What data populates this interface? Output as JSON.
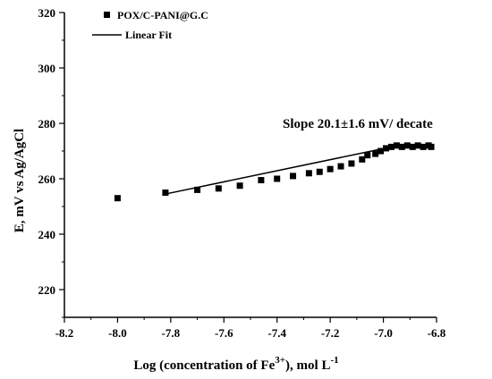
{
  "chart_data": {
    "type": "scatter",
    "xlabel": "Log (concentration of Fe3+), mol L-1",
    "xlabel_parts": {
      "main": "Log (concentration of Fe",
      "sup1": "3+",
      "mid": "), mol L",
      "sup2": "-1"
    },
    "ylabel": "E, mV vs Ag/AgCl",
    "xlim": [
      -8.2,
      -6.8
    ],
    "ylim": [
      210,
      320
    ],
    "x_ticks": [
      -8.2,
      -8.0,
      -7.8,
      -7.6,
      -7.4,
      -7.2,
      -7.0,
      -6.8
    ],
    "x_tick_labels": [
      "-8.2",
      "-8.0",
      "-7.8",
      "-7.6",
      "-7.4",
      "-7.2",
      "-7.0",
      "-6.8"
    ],
    "y_ticks": [
      220,
      240,
      260,
      280,
      300,
      320
    ],
    "y_tick_labels": [
      "220",
      "240",
      "260",
      "280",
      "300",
      "320"
    ],
    "legend": {
      "position": "top-left",
      "entries": [
        {
          "label": "POX/C-PANI@G.C",
          "marker": "square"
        },
        {
          "label": "Linear Fit",
          "marker": "line"
        }
      ]
    },
    "annotation": "Slope 20.1±1.6 mV/ decate",
    "series": [
      {
        "name": "POX/C-PANI@G.C",
        "points": [
          [
            -8.0,
            253.0
          ],
          [
            -7.82,
            255.0
          ],
          [
            -7.7,
            256.0
          ],
          [
            -7.62,
            256.5
          ],
          [
            -7.54,
            257.5
          ],
          [
            -7.46,
            259.5
          ],
          [
            -7.4,
            260.0
          ],
          [
            -7.34,
            261.0
          ],
          [
            -7.28,
            262.0
          ],
          [
            -7.24,
            262.5
          ],
          [
            -7.2,
            263.5
          ],
          [
            -7.16,
            264.5
          ],
          [
            -7.12,
            265.5
          ],
          [
            -7.08,
            267.0
          ],
          [
            -7.06,
            268.5
          ],
          [
            -7.03,
            269.0
          ],
          [
            -7.01,
            270.0
          ],
          [
            -6.99,
            271.0
          ],
          [
            -6.97,
            271.5
          ],
          [
            -6.95,
            272.0
          ],
          [
            -6.93,
            271.5
          ],
          [
            -6.91,
            272.0
          ],
          [
            -6.89,
            271.5
          ],
          [
            -6.87,
            272.0
          ],
          [
            -6.85,
            271.5
          ],
          [
            -6.83,
            272.0
          ],
          [
            -6.82,
            271.5
          ]
        ]
      },
      {
        "name": "Linear Fit",
        "type": "line",
        "points": [
          [
            -7.82,
            254.5
          ],
          [
            -6.97,
            271.5
          ]
        ]
      }
    ]
  }
}
